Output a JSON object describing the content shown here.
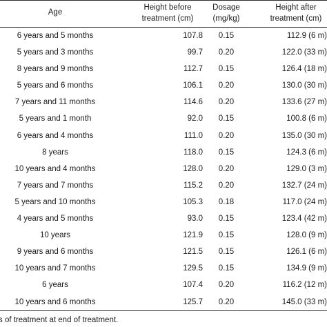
{
  "table": {
    "headers": {
      "age": "Age",
      "height_before": [
        "Height before",
        "treatment (cm)"
      ],
      "dosage": [
        "Dosage",
        "(mg/kg)"
      ],
      "height_after": [
        "Height after",
        "treatment (cm)"
      ]
    },
    "rows": [
      {
        "age": "6 years and 5 months",
        "height_before": "107.8",
        "dosage": "0.15",
        "height_after": "112.9 (6 m)"
      },
      {
        "age": "5 years and 3 months",
        "height_before": "99.7",
        "dosage": "0.20",
        "height_after": "122.0 (33 m)"
      },
      {
        "age": "8 years and 9 months",
        "height_before": "112.7",
        "dosage": "0.15",
        "height_after": "126.4 (18 m)"
      },
      {
        "age": "5 years and 6 months",
        "height_before": "106.1",
        "dosage": "0.20",
        "height_after": "130.0 (30 m)"
      },
      {
        "age": "7 years and 11 months",
        "height_before": "114.6",
        "dosage": "0.20",
        "height_after": "133.6 (27 m)"
      },
      {
        "age": "5 years and 1 month",
        "height_before": "92.0",
        "dosage": "0.15",
        "height_after": "100.8 (6 m)"
      },
      {
        "age": "6 years and 4 months",
        "height_before": "111.0",
        "dosage": "0.20",
        "height_after": "135.0 (30 m)"
      },
      {
        "age": "8 years",
        "height_before": "118.0",
        "dosage": "0.15",
        "height_after": "124.3 (6 m)"
      },
      {
        "age": "10 years and 4 months",
        "height_before": "128.0",
        "dosage": "0.20",
        "height_after": "129.0 (3 m)"
      },
      {
        "age": "7 years and 7 months",
        "height_before": "115.2",
        "dosage": "0.20",
        "height_after": "132.7 (24 m)"
      },
      {
        "age": "5 years and 10 months",
        "height_before": "105.3",
        "dosage": "0.18",
        "height_after": "117.0 (24 m)"
      },
      {
        "age": "4 years and 5 months",
        "height_before": "93.0",
        "dosage": "0.15",
        "height_after": "123.4 (42 m)"
      },
      {
        "age": "10 years",
        "height_before": "121.9",
        "dosage": "0.15",
        "height_after": "128.0 (9 m)"
      },
      {
        "age": "9 years and 6 months",
        "height_before": "121.5",
        "dosage": "0.15",
        "height_after": "126.1 (6 m)"
      },
      {
        "age": "10 years and 7 months",
        "height_before": "129.5",
        "dosage": "0.15",
        "height_after": "134.9 (9 m)"
      },
      {
        "age": "6 years",
        "height_before": "107.4",
        "dosage": "0.20",
        "height_after": "116.2 (12 m)"
      },
      {
        "age": "10 years and 6 months",
        "height_before": "125.7",
        "dosage": "0.20",
        "height_after": "145.0 (33 m)"
      }
    ]
  },
  "footnote": "s of treatment at end of treatment."
}
